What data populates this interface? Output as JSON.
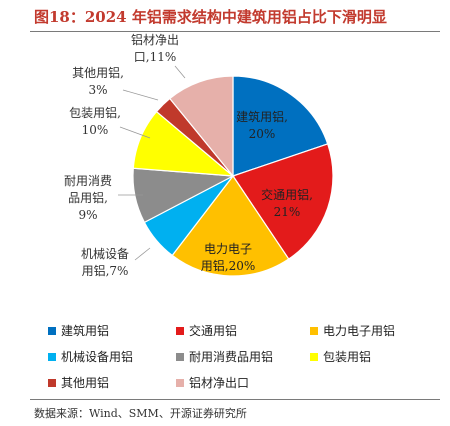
{
  "header": {
    "title": "图18：2024 年铝需求结构中建筑用铝占比下滑明显"
  },
  "source": "数据来源：Wind、SMM、开源证券研究所",
  "chart_data": {
    "type": "pie",
    "title": "",
    "categories": [
      "建筑用铝",
      "交通用铝",
      "电力电子用铝",
      "机械设备用铝",
      "耐用消费品用铝",
      "包装用铝",
      "其他用铝",
      "铝材净出口"
    ],
    "values": [
      20,
      21,
      20,
      7,
      9,
      10,
      3,
      11
    ],
    "unit": "%",
    "colors": [
      "#0070c0",
      "#e31b1b",
      "#ffc000",
      "#00b0f0",
      "#8c8c8c",
      "#ffff00",
      "#c0392b",
      "#e6b0aa"
    ],
    "slice_labels": [
      [
        "建筑用铝,",
        "20%"
      ],
      [
        "交通用铝,",
        "21%"
      ],
      [
        "电力电子",
        "用铝,20%"
      ],
      [
        "机械设备",
        "用铝,7%"
      ],
      [
        "耐用消费",
        "品用铝,",
        "9%"
      ],
      [
        "包装用铝,",
        "10%"
      ],
      [
        "其他用铝,",
        "3%"
      ],
      [
        "铝材净出",
        "口,11%"
      ]
    ],
    "legend_placement": "bottom"
  }
}
